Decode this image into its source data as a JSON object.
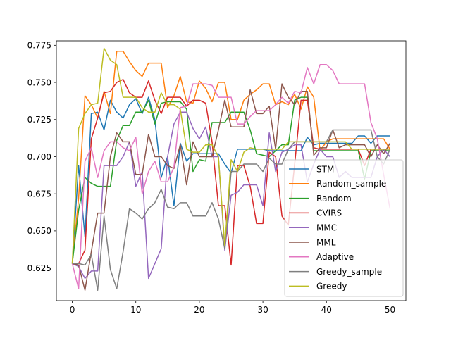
{
  "chart_data": {
    "type": "line",
    "title": "",
    "xlabel": "",
    "ylabel": "",
    "xlim": [
      -2.5,
      52.5
    ],
    "ylim": [
      0.603,
      0.778
    ],
    "x_ticks": [
      0,
      10,
      20,
      30,
      40,
      50
    ],
    "y_ticks": [
      0.625,
      0.65,
      0.675,
      0.7,
      0.725,
      0.75,
      0.775
    ],
    "y_tick_labels": [
      "0.625",
      "0.650",
      "0.675",
      "0.700",
      "0.725",
      "0.750",
      "0.775"
    ],
    "grid": false,
    "legend_position": "lower-right",
    "x": [
      0,
      1,
      2,
      3,
      4,
      5,
      6,
      7,
      8,
      9,
      10,
      11,
      12,
      13,
      14,
      15,
      16,
      17,
      18,
      19,
      20,
      21,
      22,
      23,
      24,
      25,
      26,
      27,
      28,
      29,
      30,
      31,
      32,
      33,
      34,
      35,
      36,
      37,
      38,
      39,
      40,
      41,
      42,
      43,
      44,
      45,
      46,
      47,
      48,
      49,
      50
    ],
    "series": [
      {
        "name": "STM",
        "color": "#1f77b4",
        "values": [
          0.628,
          0.694,
          0.646,
          0.729,
          0.73,
          0.718,
          0.738,
          0.73,
          0.726,
          0.735,
          0.739,
          0.729,
          0.74,
          0.725,
          0.686,
          0.7,
          0.667,
          0.709,
          0.697,
          0.702,
          0.702,
          0.702,
          0.702,
          0.702,
          0.695,
          0.689,
          0.705,
          0.705,
          0.705,
          0.705,
          0.705,
          0.704,
          0.704,
          0.704,
          0.704,
          0.704,
          0.704,
          0.713,
          0.708,
          0.709,
          0.709,
          0.709,
          0.709,
          0.709,
          0.709,
          0.714,
          0.714,
          0.709,
          0.714,
          0.714,
          0.714
        ]
      },
      {
        "name": "Random_sample",
        "color": "#ff7f0e",
        "values": [
          0.628,
          0.672,
          0.741,
          0.735,
          0.726,
          0.744,
          0.729,
          0.771,
          0.771,
          0.764,
          0.758,
          0.754,
          0.763,
          0.763,
          0.763,
          0.733,
          0.741,
          0.754,
          0.737,
          0.736,
          0.751,
          0.746,
          0.737,
          0.75,
          0.75,
          0.725,
          0.725,
          0.738,
          0.742,
          0.745,
          0.749,
          0.749,
          0.735,
          0.737,
          0.735,
          0.742,
          0.732,
          0.747,
          0.74,
          0.704,
          0.71,
          0.712,
          0.712,
          0.712,
          0.712,
          0.712,
          0.712,
          0.712,
          0.712,
          0.712,
          0.705
        ]
      },
      {
        "name": "Random",
        "color": "#2ca02c",
        "values": [
          0.628,
          0.664,
          0.686,
          0.682,
          0.68,
          0.68,
          0.68,
          0.711,
          0.721,
          0.721,
          0.73,
          0.73,
          0.738,
          0.722,
          0.736,
          0.737,
          0.737,
          0.737,
          0.732,
          0.69,
          0.698,
          0.697,
          0.723,
          0.723,
          0.723,
          0.73,
          0.73,
          0.73,
          0.718,
          0.702,
          0.701,
          0.7,
          0.704,
          0.708,
          0.708,
          0.738,
          0.74,
          0.74,
          0.704,
          0.704,
          0.704,
          0.704,
          0.704,
          0.704,
          0.704,
          0.704,
          0.685,
          0.704,
          0.704,
          0.704,
          0.704
        ]
      },
      {
        "name": "CVIRS",
        "color": "#d62728",
        "values": [
          0.628,
          0.628,
          0.637,
          0.712,
          0.726,
          0.743,
          0.744,
          0.75,
          0.752,
          0.743,
          0.74,
          0.74,
          0.751,
          0.738,
          0.729,
          0.74,
          0.74,
          0.74,
          0.734,
          0.738,
          0.738,
          0.736,
          0.71,
          0.667,
          0.667,
          0.627,
          0.694,
          0.694,
          0.68,
          0.655,
          0.655,
          0.703,
          0.7,
          0.66,
          0.654,
          0.695,
          0.738,
          0.738,
          0.706,
          0.705,
          0.705,
          0.705,
          0.705,
          0.705,
          0.705,
          0.705,
          0.694,
          0.705,
          0.705,
          0.705,
          0.705
        ]
      },
      {
        "name": "MMC",
        "color": "#9467bd",
        "values": [
          0.628,
          0.626,
          0.618,
          0.623,
          0.623,
          0.694,
          0.694,
          0.694,
          0.7,
          0.71,
          0.68,
          0.69,
          0.618,
          0.628,
          0.638,
          0.7,
          0.722,
          0.73,
          0.73,
          0.719,
          0.712,
          0.72,
          0.7,
          0.7,
          0.637,
          0.674,
          0.676,
          0.681,
          0.681,
          0.681,
          0.667,
          0.716,
          0.69,
          0.703,
          0.705,
          0.708,
          0.708,
          0.683,
          0.695,
          0.705,
          0.7,
          0.7,
          0.686,
          0.69,
          0.686,
          0.686,
          0.686,
          0.686,
          0.7,
          0.705,
          0.7
        ]
      },
      {
        "name": "MML",
        "color": "#8c564b",
        "values": [
          0.628,
          0.627,
          0.61,
          0.636,
          0.662,
          0.662,
          0.7,
          0.716,
          0.71,
          0.71,
          0.688,
          0.688,
          0.715,
          0.7,
          0.7,
          0.694,
          0.692,
          0.708,
          0.681,
          0.71,
          0.7,
          0.7,
          0.7,
          0.718,
          0.738,
          0.72,
          0.72,
          0.72,
          0.745,
          0.729,
          0.729,
          0.734,
          0.705,
          0.749,
          0.74,
          0.735,
          0.744,
          0.744,
          0.701,
          0.706,
          0.706,
          0.718,
          0.706,
          0.708,
          0.708,
          0.708,
          0.708,
          0.7,
          0.708,
          0.702,
          0.709
        ]
      },
      {
        "name": "Adaptive",
        "color": "#e377c2",
        "values": [
          0.628,
          0.611,
          0.697,
          0.706,
          0.686,
          0.704,
          0.71,
          0.71,
          0.706,
          0.704,
          0.713,
          0.675,
          0.69,
          0.697,
          0.683,
          0.683,
          0.693,
          0.733,
          0.734,
          0.749,
          0.749,
          0.749,
          0.748,
          0.74,
          0.74,
          0.74,
          0.722,
          0.722,
          0.727,
          0.731,
          0.731,
          0.731,
          0.735,
          0.74,
          0.736,
          0.744,
          0.743,
          0.76,
          0.749,
          0.762,
          0.762,
          0.758,
          0.749,
          0.749,
          0.749,
          0.749,
          0.749,
          0.723,
          0.712,
          0.688,
          0.665
        ]
      },
      {
        "name": "Greedy_sample",
        "color": "#7f7f7f",
        "values": [
          0.628,
          0.628,
          0.627,
          0.634,
          0.61,
          0.66,
          0.624,
          0.611,
          0.636,
          0.665,
          0.662,
          0.658,
          0.665,
          0.669,
          0.678,
          0.666,
          0.665,
          0.669,
          0.669,
          0.66,
          0.66,
          0.66,
          0.669,
          0.658,
          0.638,
          0.69,
          0.69,
          0.695,
          0.695,
          0.695,
          0.69,
          0.699,
          0.695,
          0.695,
          0.705,
          0.71,
          0.71,
          0.71,
          0.71,
          0.71,
          0.71,
          0.718,
          0.718,
          0.718,
          0.718,
          0.718,
          0.718,
          0.718,
          0.7,
          0.695,
          0.705
        ]
      },
      {
        "name": "Greedy",
        "color": "#bcbd22",
        "values": [
          0.628,
          0.719,
          0.729,
          0.735,
          0.736,
          0.773,
          0.765,
          0.762,
          0.74,
          0.74,
          0.74,
          0.733,
          0.73,
          0.73,
          0.743,
          0.735,
          0.735,
          0.732,
          0.705,
          0.703,
          0.703,
          0.708,
          0.708,
          0.7,
          0.64,
          0.698,
          0.69,
          0.703,
          0.706,
          0.705,
          0.705,
          0.705,
          0.705,
          0.705,
          0.71,
          0.71,
          0.71,
          0.71,
          0.71,
          0.71,
          0.71,
          0.71,
          0.71,
          0.71,
          0.705,
          0.705,
          0.705,
          0.705,
          0.705,
          0.705,
          0.705
        ]
      }
    ]
  }
}
